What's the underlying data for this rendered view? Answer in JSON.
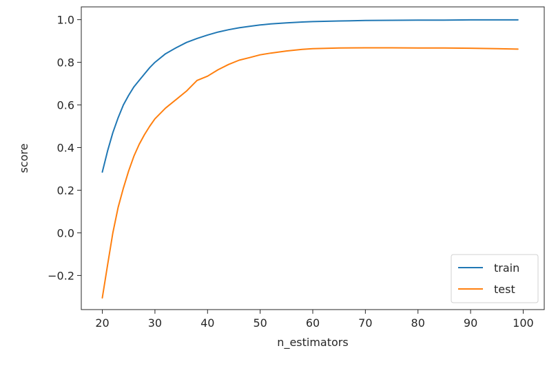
{
  "chart_data": {
    "type": "line",
    "title": "",
    "xlabel": "n_estimators",
    "ylabel": "score",
    "xlim": [
      16,
      104
    ],
    "ylim": [
      -0.36,
      1.06
    ],
    "xticks": [
      20,
      30,
      40,
      50,
      60,
      70,
      80,
      90,
      100
    ],
    "xtick_labels": [
      "20",
      "30",
      "40",
      "50",
      "60",
      "70",
      "80",
      "90",
      "100"
    ],
    "yticks": [
      -0.2,
      0.0,
      0.2,
      0.4,
      0.6,
      0.8,
      1.0
    ],
    "ytick_labels": [
      "−0.2",
      "0.0",
      "0.2",
      "0.4",
      "0.6",
      "0.8",
      "1.0"
    ],
    "grid": false,
    "legend_position": "lower-right",
    "x": [
      20,
      21,
      22,
      23,
      24,
      25,
      26,
      27,
      28,
      29,
      30,
      32,
      34,
      36,
      38,
      40,
      42,
      44,
      46,
      48,
      50,
      52,
      55,
      58,
      60,
      65,
      70,
      75,
      80,
      85,
      90,
      95,
      99
    ],
    "series": [
      {
        "name": "train",
        "color": "#1f77b4",
        "values": [
          0.285,
          0.385,
          0.47,
          0.54,
          0.6,
          0.645,
          0.685,
          0.715,
          0.745,
          0.775,
          0.8,
          0.84,
          0.868,
          0.893,
          0.912,
          0.928,
          0.942,
          0.953,
          0.962,
          0.969,
          0.975,
          0.98,
          0.985,
          0.989,
          0.991,
          0.994,
          0.996,
          0.997,
          0.998,
          0.998,
          0.999,
          0.999,
          0.999
        ]
      },
      {
        "name": "test",
        "color": "#ff7f0e",
        "values": [
          -0.305,
          -0.15,
          0.0,
          0.12,
          0.21,
          0.29,
          0.36,
          0.415,
          0.46,
          0.5,
          0.535,
          0.585,
          0.625,
          0.665,
          0.715,
          0.735,
          0.765,
          0.79,
          0.81,
          0.822,
          0.835,
          0.843,
          0.853,
          0.861,
          0.864,
          0.867,
          0.868,
          0.868,
          0.867,
          0.867,
          0.866,
          0.864,
          0.862
        ]
      }
    ]
  }
}
